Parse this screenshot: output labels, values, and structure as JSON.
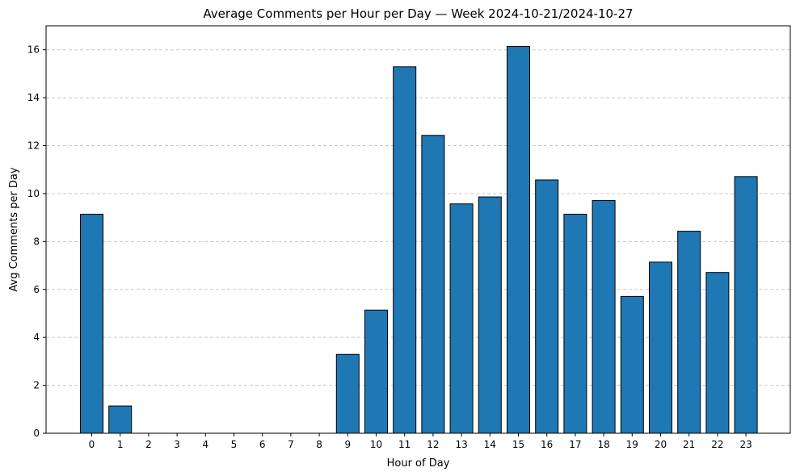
{
  "chart_data": {
    "type": "bar",
    "title": "Average Comments per Hour per Day — Week 2024-10-21/2024-10-27",
    "xlabel": "Hour of Day",
    "ylabel": "Avg Comments per Day",
    "categories": [
      "0",
      "1",
      "2",
      "3",
      "4",
      "5",
      "6",
      "7",
      "8",
      "9",
      "10",
      "11",
      "12",
      "13",
      "14",
      "15",
      "16",
      "17",
      "18",
      "19",
      "20",
      "21",
      "22",
      "23"
    ],
    "values": [
      9.14,
      1.14,
      0,
      0,
      0,
      0,
      0,
      0,
      0,
      3.29,
      5.14,
      15.29,
      12.43,
      9.57,
      9.86,
      16.14,
      10.57,
      9.14,
      9.71,
      5.71,
      7.14,
      8.43,
      6.71,
      10.71
    ],
    "ylim": [
      0,
      17
    ],
    "yticks": [
      0,
      2,
      4,
      6,
      8,
      10,
      12,
      14,
      16
    ],
    "grid": "y-dashed",
    "bar_color": "#1f77b4",
    "edge_color": "#000000",
    "grid_color": "#c8c8c8"
  }
}
